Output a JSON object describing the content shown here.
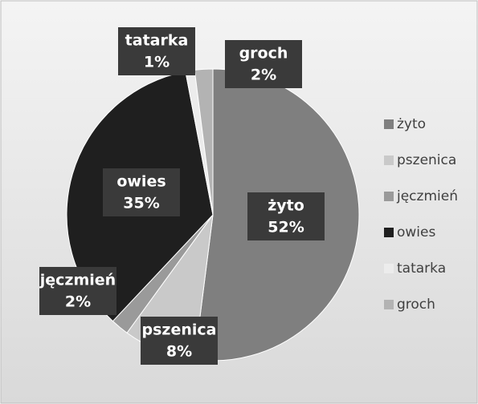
{
  "chart_data": {
    "type": "pie",
    "categories": [
      "żyto",
      "pszenica",
      "jęczmień",
      "owies",
      "tatarka",
      "groch"
    ],
    "values": [
      52,
      8,
      2,
      35,
      1,
      2
    ],
    "value_labels": [
      "52%",
      "8%",
      "2%",
      "35%",
      "1%",
      "2%"
    ],
    "colors": [
      "#7f7f7f",
      "#c9c9c9",
      "#9a9a9a",
      "#1f1f1f",
      "#ececec",
      "#b3b3b3"
    ],
    "legend": "right"
  }
}
